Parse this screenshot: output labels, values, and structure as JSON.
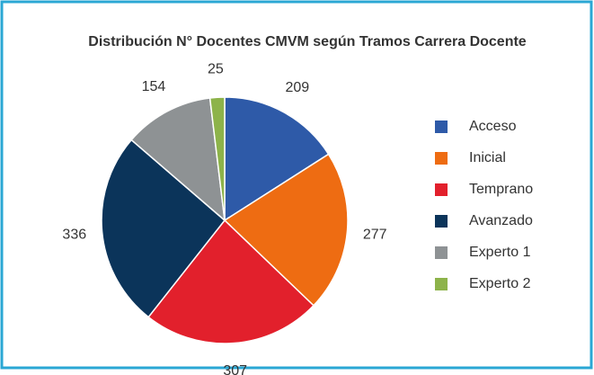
{
  "chart_data": {
    "type": "pie",
    "title": "Distribución N° Docentes CMVM según Tramos Carrera Docente",
    "categories": [
      "Acceso",
      "Inicial",
      "Temprano",
      "Avanzado",
      "Experto 1",
      "Experto 2"
    ],
    "values": [
      209,
      277,
      307,
      336,
      154,
      25
    ],
    "colors": [
      "#2e5aa8",
      "#ee6c12",
      "#e2202c",
      "#0b345a",
      "#8e9294",
      "#8db34a"
    ],
    "legend": "right"
  }
}
